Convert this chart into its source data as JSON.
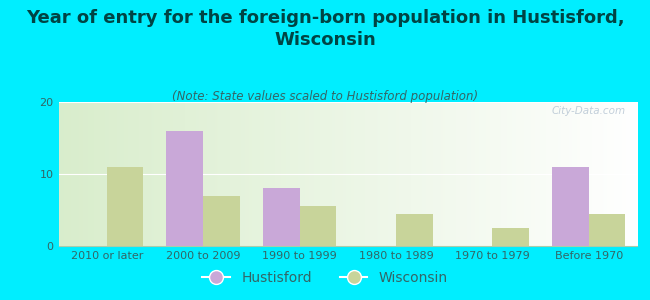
{
  "title": "Year of entry for the foreign-born population in Hustisford,\nWisconsin",
  "subtitle": "(Note: State values scaled to Hustisford population)",
  "categories": [
    "2010 or later",
    "2000 to 2009",
    "1990 to 1999",
    "1980 to 1989",
    "1970 to 1979",
    "Before 1970"
  ],
  "hustisford_values": [
    0,
    16,
    8,
    0,
    0,
    11
  ],
  "wisconsin_values": [
    11,
    7,
    5.5,
    4.5,
    2.5,
    4.5
  ],
  "hustisford_color": "#c9a8d8",
  "wisconsin_color": "#c8d49a",
  "background_outer": "#00eeff",
  "ylim": [
    0,
    20
  ],
  "yticks": [
    0,
    10,
    20
  ],
  "bar_width": 0.38,
  "title_fontsize": 13,
  "subtitle_fontsize": 8.5,
  "tick_fontsize": 8,
  "legend_fontsize": 10,
  "watermark": "City-Data.com"
}
